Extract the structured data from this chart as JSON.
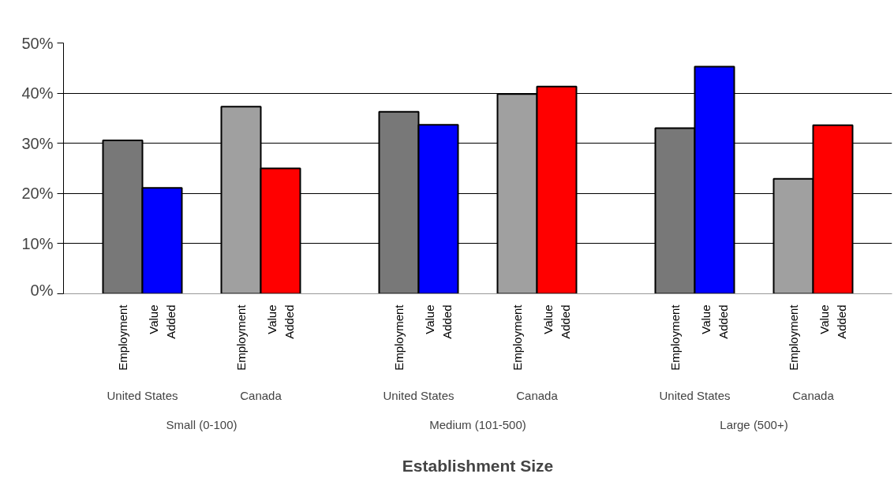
{
  "chart_data": {
    "type": "bar",
    "categories": [
      "Employment",
      "Value Added",
      "Employment",
      "Value Added",
      "Employment",
      "Value Added",
      "Employment",
      "Value Added",
      "Employment",
      "Value Added",
      "Employment",
      "Value Added"
    ],
    "values": [
      30.6,
      21.1,
      37.3,
      25.0,
      36.3,
      33.7,
      39.8,
      41.3,
      33.0,
      45.3,
      22.9,
      33.6
    ],
    "colors": [
      "#787878",
      "#0000ff",
      "#a0a0a0",
      "#ff0000",
      "#787878",
      "#0000ff",
      "#a0a0a0",
      "#ff0000",
      "#787878",
      "#0000ff",
      "#a0a0a0",
      "#ff0000"
    ],
    "annotations": [
      "United States",
      "Canada",
      "United States",
      "Canada",
      "United States",
      "Canada",
      "Small (0-100)",
      "Medium (101-500)",
      "Large (500+)",
      "Establishment Size"
    ],
    "ylim": [
      0,
      50
    ],
    "yticks": [
      {
        "value": 0,
        "label": "0%"
      },
      {
        "value": 10,
        "label": "10%"
      },
      {
        "value": 20,
        "label": "20%"
      },
      {
        "value": 30,
        "label": "30%"
      },
      {
        "value": 40,
        "label": "40%"
      },
      {
        "value": 50,
        "label": "50%"
      }
    ],
    "grid": "y"
  }
}
